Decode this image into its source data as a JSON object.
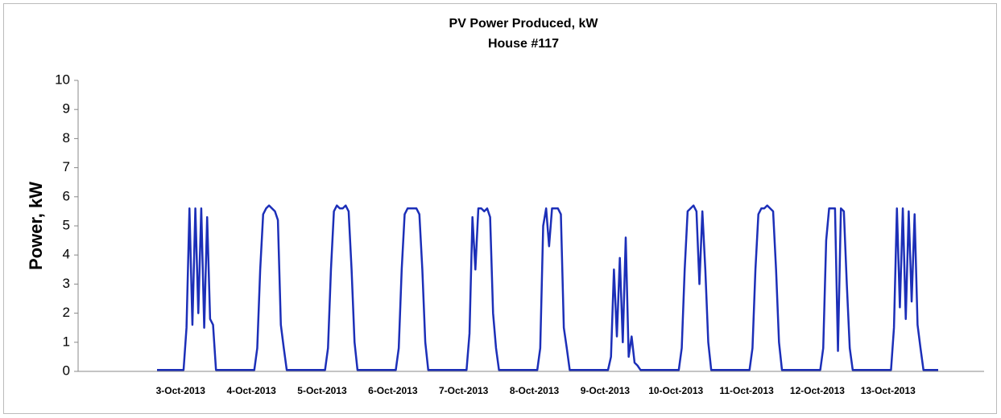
{
  "chart_data": {
    "type": "line",
    "title": "PV Power Produced, kW",
    "subtitle": "House #117",
    "y_label": "Power, kW",
    "ylim": [
      0,
      10
    ],
    "yticks": [
      0,
      1,
      2,
      3,
      4,
      5,
      6,
      7,
      8,
      9,
      10
    ],
    "grid": false,
    "categories": [
      null,
      null,
      null,
      null,
      null,
      null,
      null,
      null,
      "3-Oct-2013",
      null,
      null,
      null,
      null,
      null,
      null,
      null,
      null,
      null,
      null,
      null,
      null,
      null,
      null,
      null,
      null,
      null,
      null,
      null,
      null,
      null,
      null,
      null,
      "4-Oct-2013",
      null,
      null,
      null,
      null,
      null,
      null,
      null,
      null,
      null,
      null,
      null,
      null,
      null,
      null,
      null,
      null,
      null,
      null,
      null,
      null,
      null,
      null,
      null,
      "5-Oct-2013",
      null,
      null,
      null,
      null,
      null,
      null,
      null,
      null,
      null,
      null,
      null,
      null,
      null,
      null,
      null,
      null,
      null,
      null,
      null,
      null,
      null,
      null,
      null,
      "6-Oct-2013",
      null,
      null,
      null,
      null,
      null,
      null,
      null,
      null,
      null,
      null,
      null,
      null,
      null,
      null,
      null,
      null,
      null,
      null,
      null,
      null,
      null,
      null,
      null,
      "7-Oct-2013",
      null,
      null,
      null,
      null,
      null,
      null,
      null,
      null,
      null,
      null,
      null,
      null,
      null,
      null,
      null,
      null,
      null,
      null,
      null,
      null,
      null,
      null,
      null,
      "8-Oct-2013",
      null,
      null,
      null,
      null,
      null,
      null,
      null,
      null,
      null,
      null,
      null,
      null,
      null,
      null,
      null,
      null,
      null,
      null,
      null,
      null,
      null,
      null,
      null,
      "9-Oct-2013",
      null,
      null,
      null,
      null,
      null,
      null,
      null,
      null,
      null,
      null,
      null,
      null,
      null,
      null,
      null,
      null,
      null,
      null,
      null,
      null,
      null,
      null,
      null,
      "10-Oct-2013",
      null,
      null,
      null,
      null,
      null,
      null,
      null,
      null,
      null,
      null,
      null,
      null,
      null,
      null,
      null,
      null,
      null,
      null,
      null,
      null,
      null,
      null,
      null,
      "11-Oct-2013",
      null,
      null,
      null,
      null,
      null,
      null,
      null,
      null,
      null,
      null,
      null,
      null,
      null,
      null,
      null,
      null,
      null,
      null,
      null,
      null,
      null,
      null,
      null,
      "12-Oct-2013",
      null,
      null,
      null,
      null,
      null,
      null,
      null,
      null,
      null,
      null,
      null,
      null,
      null,
      null,
      null,
      null,
      null,
      null,
      null,
      null,
      null,
      null,
      null,
      "13-Oct-2013",
      null,
      null,
      null,
      null,
      null,
      null,
      null,
      null,
      null,
      null,
      null,
      null,
      null,
      null,
      null,
      null,
      null
    ],
    "series": [
      {
        "name": "PV Power",
        "color": "#1c2fb8",
        "values": [
          0.05,
          0.05,
          0.05,
          0.05,
          0.05,
          0.05,
          0.05,
          0.05,
          0.05,
          0.05,
          1.5,
          5.6,
          1.6,
          5.6,
          2.0,
          5.6,
          1.5,
          5.3,
          1.8,
          1.6,
          0.05,
          0.05,
          0.05,
          0.05,
          0.05,
          0.05,
          0.05,
          0.05,
          0.05,
          0.05,
          0.05,
          0.05,
          0.05,
          0.05,
          0.8,
          3.5,
          5.4,
          5.6,
          5.7,
          5.6,
          5.5,
          5.2,
          1.6,
          0.8,
          0.05,
          0.05,
          0.05,
          0.05,
          0.05,
          0.05,
          0.05,
          0.05,
          0.05,
          0.05,
          0.05,
          0.05,
          0.05,
          0.05,
          0.8,
          3.5,
          5.5,
          5.7,
          5.6,
          5.6,
          5.7,
          5.5,
          3.5,
          1.0,
          0.05,
          0.05,
          0.05,
          0.05,
          0.05,
          0.05,
          0.05,
          0.05,
          0.05,
          0.05,
          0.05,
          0.05,
          0.05,
          0.05,
          0.8,
          3.5,
          5.4,
          5.6,
          5.6,
          5.6,
          5.6,
          5.4,
          3.5,
          1.0,
          0.05,
          0.05,
          0.05,
          0.05,
          0.05,
          0.05,
          0.05,
          0.05,
          0.05,
          0.05,
          0.05,
          0.05,
          0.05,
          0.05,
          1.3,
          5.3,
          3.5,
          5.6,
          5.6,
          5.5,
          5.6,
          5.3,
          2.0,
          0.8,
          0.05,
          0.05,
          0.05,
          0.05,
          0.05,
          0.05,
          0.05,
          0.05,
          0.05,
          0.05,
          0.05,
          0.05,
          0.05,
          0.05,
          0.8,
          5.0,
          5.6,
          4.3,
          5.6,
          5.6,
          5.6,
          5.4,
          1.5,
          0.8,
          0.05,
          0.05,
          0.05,
          0.05,
          0.05,
          0.05,
          0.05,
          0.05,
          0.05,
          0.05,
          0.05,
          0.05,
          0.05,
          0.05,
          0.5,
          3.5,
          1.2,
          3.9,
          1.0,
          4.6,
          0.5,
          1.2,
          0.3,
          0.2,
          0.05,
          0.05,
          0.05,
          0.05,
          0.05,
          0.05,
          0.05,
          0.05,
          0.05,
          0.05,
          0.05,
          0.05,
          0.05,
          0.05,
          0.8,
          3.5,
          5.5,
          5.6,
          5.7,
          5.5,
          3.0,
          5.5,
          3.5,
          1.0,
          0.05,
          0.05,
          0.05,
          0.05,
          0.05,
          0.05,
          0.05,
          0.05,
          0.05,
          0.05,
          0.05,
          0.05,
          0.05,
          0.05,
          0.8,
          3.5,
          5.4,
          5.6,
          5.6,
          5.7,
          5.6,
          5.5,
          3.5,
          1.0,
          0.05,
          0.05,
          0.05,
          0.05,
          0.05,
          0.05,
          0.05,
          0.05,
          0.05,
          0.05,
          0.05,
          0.05,
          0.05,
          0.05,
          0.8,
          4.5,
          5.6,
          5.6,
          5.6,
          0.7,
          5.6,
          5.5,
          3.0,
          0.8,
          0.05,
          0.05,
          0.05,
          0.05,
          0.05,
          0.05,
          0.05,
          0.05,
          0.05,
          0.05,
          0.05,
          0.05,
          0.05,
          0.05,
          1.5,
          5.6,
          2.2,
          5.6,
          1.8,
          5.5,
          2.4,
          5.4,
          1.6,
          0.8,
          0.05,
          0.05,
          0.05,
          0.05,
          0.05,
          0.05
        ]
      }
    ]
  }
}
